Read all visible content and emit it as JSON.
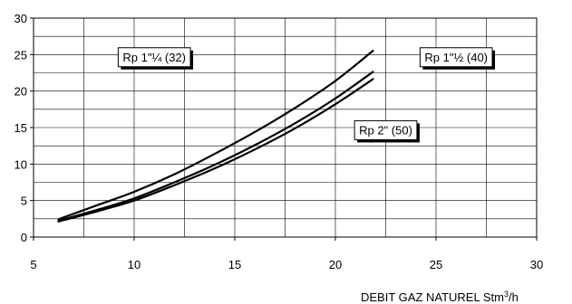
{
  "chart_data": {
    "type": "line",
    "title": "",
    "xlabel_prefix": "DEBIT GAZ NATUREL  Stm",
    "xlabel_sup": "3",
    "xlabel_suffix": "/h",
    "ylabel": "",
    "xlim": [
      5,
      30
    ],
    "ylim": [
      0,
      30
    ],
    "xticks": [
      5,
      10,
      15,
      20,
      25,
      30
    ],
    "yticks": [
      0,
      5,
      10,
      15,
      20,
      25,
      30
    ],
    "x_minor_step": 2.5,
    "y_major_step": 5,
    "y_minor_step": 2.5,
    "grid": true,
    "series": [
      {
        "name": "Rp 1\"¼ (32)",
        "color": "#000000",
        "x": [
          6.2,
          8,
          10,
          12,
          14,
          16,
          18,
          20,
          21.9
        ],
        "y": [
          2.4,
          4.2,
          6.2,
          8.6,
          11.4,
          14.4,
          17.7,
          21.4,
          25.6
        ]
      },
      {
        "name": "Rp 1\"½ (40)",
        "color": "#000000",
        "x": [
          6.2,
          8,
          10,
          12,
          14,
          16,
          18,
          20,
          21.9
        ],
        "y": [
          2.2,
          3.6,
          5.3,
          7.5,
          9.9,
          12.6,
          15.6,
          19.0,
          22.7
        ]
      },
      {
        "name": "Rp 2\" (50)",
        "color": "#000000",
        "x": [
          6.2,
          8,
          10,
          12,
          14,
          16,
          18,
          20,
          21.9
        ],
        "y": [
          2.1,
          3.4,
          5.0,
          7.1,
          9.4,
          12.0,
          14.9,
          18.2,
          21.7
        ]
      }
    ],
    "annotations": [
      {
        "text": "Rp 1\"¼ (32)",
        "x": 11,
        "y": 24.7
      },
      {
        "text": "Rp 1\"½ (40)",
        "x": 26,
        "y": 24.7
      },
      {
        "text": "Rp 2\" (50)",
        "x": 22.5,
        "y": 14.7
      }
    ]
  }
}
